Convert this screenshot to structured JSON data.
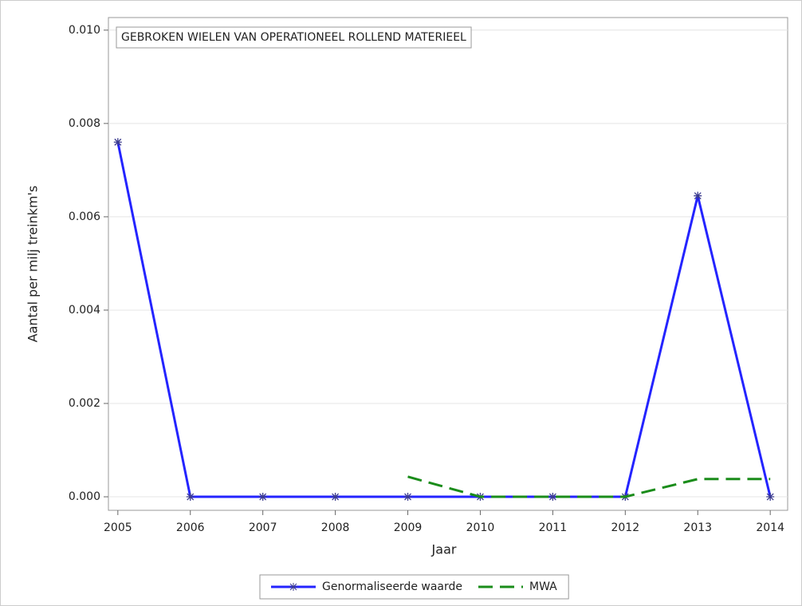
{
  "chart_data": {
    "type": "line",
    "title": "GEBROKEN WIELEN VAN OPERATIONEEL ROLLEND MATERIEEL",
    "x_label": "Jaar",
    "y_label": "Aantal per milj treinkm's",
    "x": [
      2005,
      2006,
      2007,
      2008,
      2009,
      2010,
      2011,
      2012,
      2013,
      2014
    ],
    "series": [
      {
        "name": "Genormaliseerde waarde",
        "color": "#2424ff",
        "dash": false,
        "marker": true,
        "values": [
          0.0076,
          0,
          0,
          0,
          0,
          0,
          0,
          0,
          0.00645,
          0
        ]
      },
      {
        "name": "MWA",
        "color": "#1a8c1a",
        "dash": true,
        "marker": false,
        "values": [
          null,
          null,
          null,
          null,
          0.00043,
          0,
          0,
          0,
          0.00038,
          0.00038
        ]
      }
    ],
    "xlim": [
      2004.87,
      2014.24
    ],
    "xticks": [
      2005,
      2006,
      2007,
      2008,
      2009,
      2010,
      2011,
      2012,
      2013,
      2014
    ],
    "ylim": [
      -0.00029,
      0.01027
    ],
    "yticks": [
      {
        "value": 0,
        "label": "0.000"
      },
      {
        "value": 0.002,
        "label": "0.002"
      },
      {
        "value": 0.004,
        "label": "0.004"
      },
      {
        "value": 0.006,
        "label": "0.006"
      },
      {
        "value": 0.008,
        "label": "0.008"
      },
      {
        "value": 0.01,
        "label": "0.010"
      }
    ],
    "grid": true,
    "legend": "bottom"
  }
}
